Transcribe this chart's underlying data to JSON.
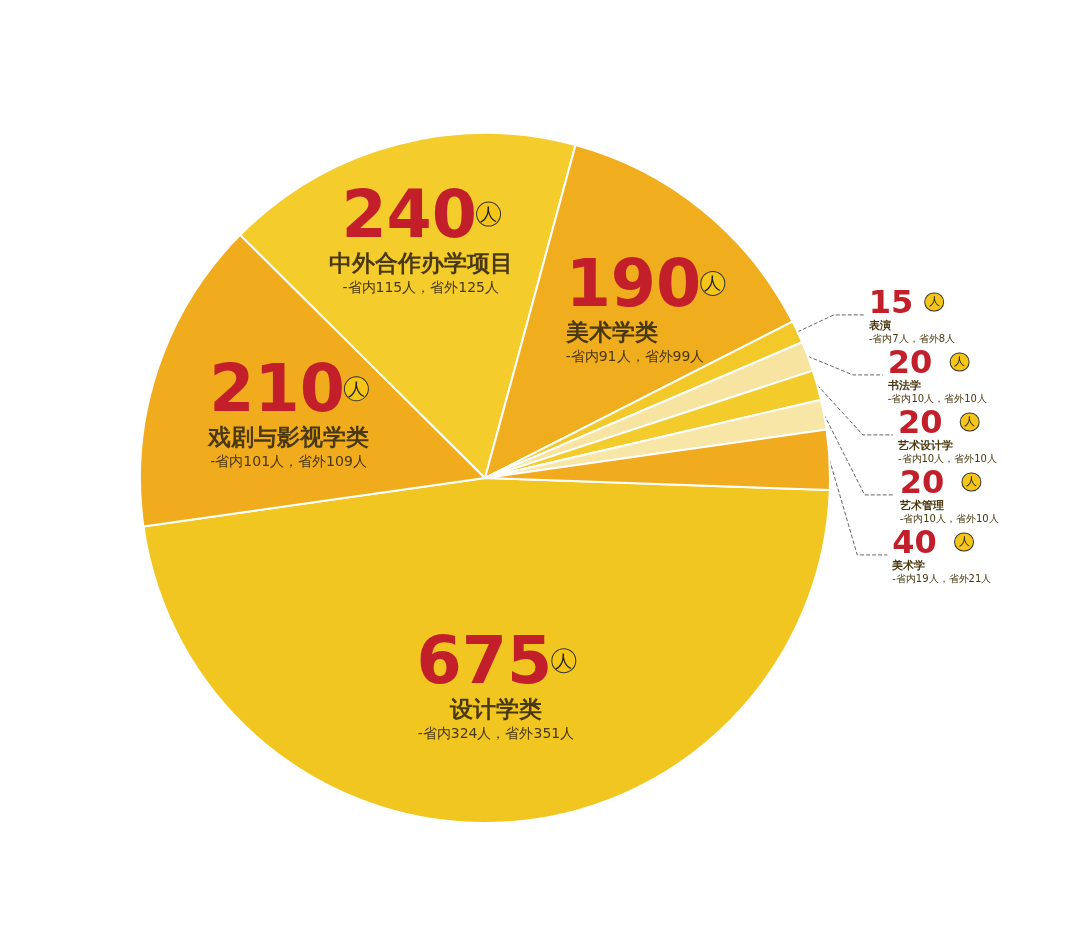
{
  "chart_data": {
    "type": "pie",
    "categories": [
      "设计学类",
      "戏剧与影视学类",
      "中外合作办学项目",
      "美术学类",
      "表演",
      "书法学",
      "艺术设计学",
      "艺术管理",
      "美术学"
    ],
    "values": [
      675,
      210,
      240,
      190,
      15,
      20,
      20,
      20,
      40
    ],
    "colors": [
      "#f2c620",
      "#f0ac1c",
      "#f4cc2c",
      "#f0ae1e",
      "#f3c92a",
      "#f7e4a0",
      "#f3cb2a",
      "#f7e6a6",
      "#f0ac1e"
    ],
    "value_labels": [
      "675人",
      "210人",
      "240人",
      "190人",
      "15人",
      "20人",
      "20人",
      "20人",
      "40人"
    ],
    "annotations": [
      "-省内324人，省外351人",
      "-省内101人，省外109人",
      "-省内115人，省外125人",
      "-省内91人，省外99人",
      "-省内7人，省外8人",
      "-省内10人，省外10人",
      "-省内10人，省外10人",
      "-省内10人，省外10人",
      "-省内19人，省外21人"
    ]
  }
}
